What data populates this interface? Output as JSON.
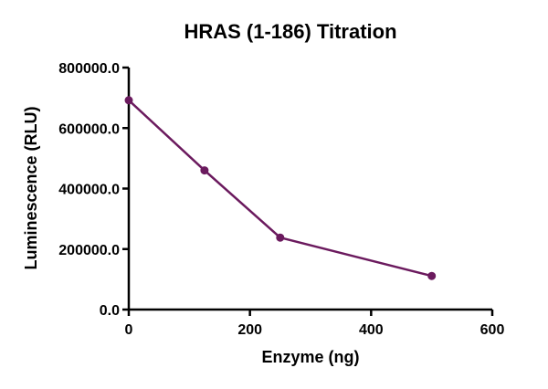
{
  "chart_data": {
    "type": "line",
    "title": "HRAS (1-186) Titration",
    "xlabel": "Enzyme (ng)",
    "ylabel": "Luminescence (RLU)",
    "xlim": [
      0,
      600
    ],
    "ylim": [
      0,
      800000
    ],
    "x_ticks": [
      0,
      200,
      400,
      600
    ],
    "y_ticks": [
      0,
      200000,
      400000,
      600000,
      800000
    ],
    "x_tick_labels": [
      "0",
      "200",
      "400",
      "600"
    ],
    "y_tick_labels": [
      "0.0",
      "200000.0",
      "400000.0",
      "600000.0",
      "800000.0"
    ],
    "grid": false,
    "legend": "none",
    "series": [
      {
        "color": "#6B1A5E",
        "x": [
          0,
          125,
          250,
          500
        ],
        "y": [
          692000,
          460000,
          238000,
          111000
        ]
      }
    ]
  }
}
